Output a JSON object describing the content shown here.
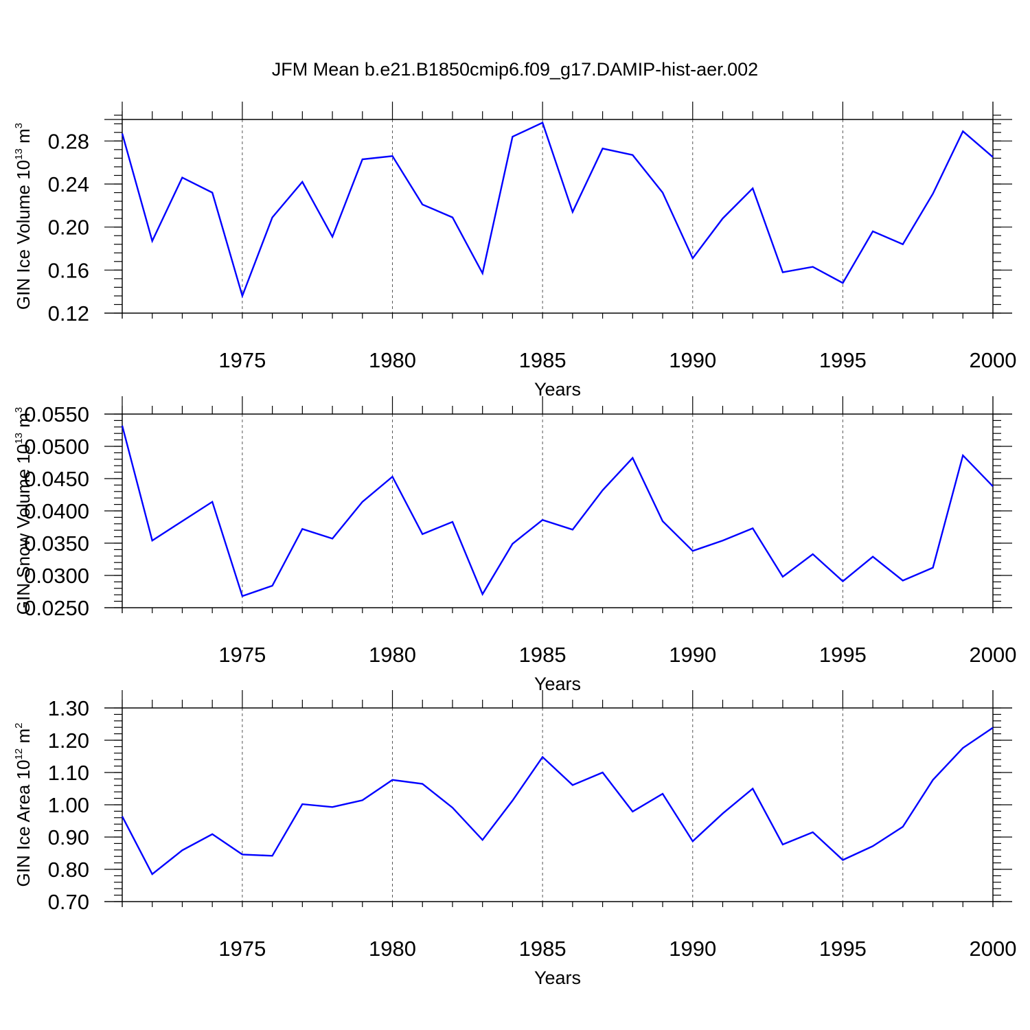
{
  "figure_title": "JFM Mean b.e21.B1850cmip6.f09_g17.DAMIP-hist-aer.002",
  "line_color": "#0000ff",
  "chart_data": [
    {
      "type": "line",
      "title": "JFM Mean b.e21.B1850cmip6.f09_g17.DAMIP-hist-aer.002",
      "xlabel": "Years",
      "ylabel": "GIN Ice Volume 10",
      "ylabel_exp": "13",
      "ylabel_unit": " m",
      "ylabel_unit_exp": "3",
      "xlim": [
        1971,
        2000
      ],
      "ylim": [
        0.12,
        0.3
      ],
      "xticks": [
        1975,
        1980,
        1985,
        1990,
        1995,
        2000
      ],
      "xtick_labels": [
        "1975",
        "1980",
        "1985",
        "1990",
        "1995",
        "2000"
      ],
      "yticks": [
        0.12,
        0.16,
        0.2,
        0.24,
        0.28
      ],
      "ytick_labels": [
        "0.12",
        "0.16",
        "0.20",
        "0.24",
        "0.28"
      ],
      "y_minor_step": 0.008,
      "grid": "vertical dashed at major x ticks",
      "series": [
        {
          "name": "GIN Ice Volume",
          "x": [
            1971,
            1972,
            1973,
            1974,
            1975,
            1976,
            1977,
            1978,
            1979,
            1980,
            1981,
            1982,
            1983,
            1984,
            1985,
            1986,
            1987,
            1988,
            1989,
            1990,
            1991,
            1992,
            1993,
            1994,
            1995,
            1996,
            1997,
            1998,
            1999,
            2000
          ],
          "values": [
            0.287,
            0.187,
            0.246,
            0.232,
            0.136,
            0.209,
            0.242,
            0.191,
            0.263,
            0.266,
            0.221,
            0.209,
            0.157,
            0.284,
            0.297,
            0.214,
            0.273,
            0.267,
            0.232,
            0.171,
            0.208,
            0.236,
            0.158,
            0.163,
            0.148,
            0.196,
            0.184,
            0.231,
            0.289,
            0.265
          ]
        }
      ]
    },
    {
      "type": "line",
      "xlabel": "Years",
      "ylabel": "GIN Snow Volume 10",
      "ylabel_exp": "13",
      "ylabel_unit": " m",
      "ylabel_unit_exp": "3",
      "xlim": [
        1971,
        2000
      ],
      "ylim": [
        0.025,
        0.055
      ],
      "xticks": [
        1975,
        1980,
        1985,
        1990,
        1995,
        2000
      ],
      "xtick_labels": [
        "1975",
        "1980",
        "1985",
        "1990",
        "1995",
        "2000"
      ],
      "yticks": [
        0.025,
        0.03,
        0.035,
        0.04,
        0.045,
        0.05,
        0.055
      ],
      "ytick_labels": [
        "0.0250",
        "0.0300",
        "0.0350",
        "0.0400",
        "0.0450",
        "0.0500",
        "0.0550"
      ],
      "y_minor_step": 0.001,
      "grid": "vertical dashed at major x ticks",
      "series": [
        {
          "name": "GIN Snow Volume",
          "x": [
            1971,
            1972,
            1973,
            1974,
            1975,
            1976,
            1977,
            1978,
            1979,
            1980,
            1981,
            1982,
            1983,
            1984,
            1985,
            1986,
            1987,
            1988,
            1989,
            1990,
            1991,
            1992,
            1993,
            1994,
            1995,
            1996,
            1997,
            1998,
            1999,
            2000
          ],
          "values": [
            0.0532,
            0.0354,
            0.0384,
            0.0414,
            0.0268,
            0.0284,
            0.0372,
            0.0357,
            0.0414,
            0.0453,
            0.0364,
            0.0383,
            0.0271,
            0.0349,
            0.0386,
            0.0371,
            0.0432,
            0.0482,
            0.0384,
            0.0338,
            0.0354,
            0.0373,
            0.0298,
            0.0333,
            0.0291,
            0.0329,
            0.0292,
            0.0312,
            0.0486,
            0.0438
          ]
        }
      ]
    },
    {
      "type": "line",
      "xlabel": "Years",
      "ylabel": "GIN Ice Area 10",
      "ylabel_exp": "12",
      "ylabel_unit": " m",
      "ylabel_unit_exp": "2",
      "xlim": [
        1971,
        2000
      ],
      "ylim": [
        0.7,
        1.3
      ],
      "xticks": [
        1975,
        1980,
        1985,
        1990,
        1995,
        2000
      ],
      "xtick_labels": [
        "1975",
        "1980",
        "1985",
        "1990",
        "1995",
        "2000"
      ],
      "yticks": [
        0.7,
        0.8,
        0.9,
        1.0,
        1.1,
        1.2,
        1.3
      ],
      "ytick_labels": [
        "0.70",
        "0.80",
        "0.90",
        "1.00",
        "1.10",
        "1.20",
        "1.30"
      ],
      "y_minor_step": 0.02,
      "grid": "vertical dashed at major x ticks",
      "series": [
        {
          "name": "GIN Ice Area",
          "x": [
            1971,
            1972,
            1973,
            1974,
            1975,
            1976,
            1977,
            1978,
            1979,
            1980,
            1981,
            1982,
            1983,
            1984,
            1985,
            1986,
            1987,
            1988,
            1989,
            1990,
            1991,
            1992,
            1993,
            1994,
            1995,
            1996,
            1997,
            1998,
            1999,
            2000
          ],
          "values": [
            0.964,
            0.785,
            0.859,
            0.909,
            0.846,
            0.842,
            1.002,
            0.993,
            1.014,
            1.077,
            1.065,
            0.991,
            0.891,
            1.013,
            1.148,
            1.061,
            1.1,
            0.979,
            1.034,
            0.887,
            0.973,
            1.05,
            0.877,
            0.915,
            0.829,
            0.872,
            0.932,
            1.077,
            1.176,
            1.239
          ]
        }
      ]
    }
  ]
}
